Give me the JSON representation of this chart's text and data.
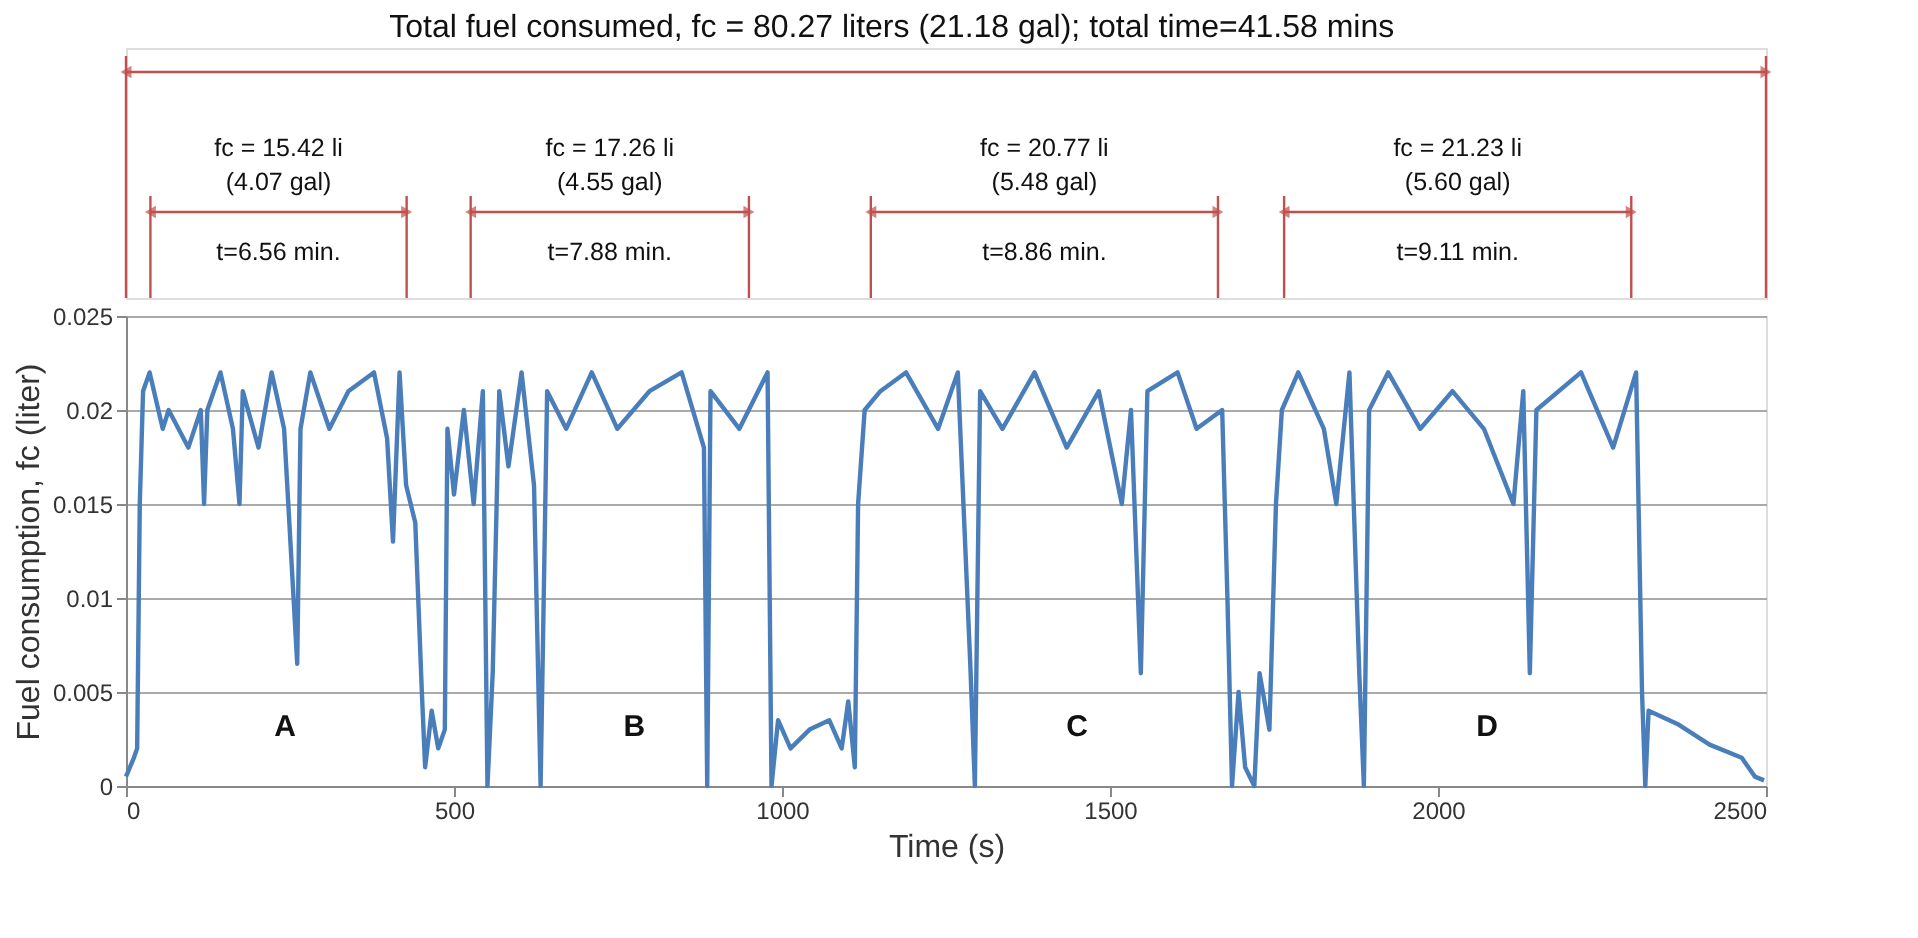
{
  "chart_data": {
    "type": "line",
    "title": "Total fuel consumed, fc = 80.27 liters (21.18 gal); total time=41.58 mins",
    "xlabel": "Time (s)",
    "ylabel": "Fuel consumption, fc  (liter)",
    "xlim": [
      0,
      2500
    ],
    "xticks": [
      0,
      500,
      1000,
      1500,
      2000,
      2500
    ],
    "ylim": [
      0,
      0.025
    ],
    "yticks": [
      0,
      0.005,
      0.01,
      0.015,
      0.02,
      0.025
    ],
    "grid": "y",
    "marker": "none",
    "line_style": "solid",
    "series": [
      {
        "color": "#4a7ebb",
        "x": [
          0,
          12,
          17,
          21,
          26,
          36,
          56,
          65,
          95,
          114,
          119,
          124,
          144,
          163,
          173,
          178,
          202,
          222,
          241,
          261,
          266,
          281,
          310,
          339,
          378,
          398,
          407,
          417,
          427,
          441,
          451,
          456,
          466,
          476,
          486,
          490,
          500,
          515,
          530,
          544,
          551,
          559,
          569,
          583,
          603,
          622,
          632,
          642,
          671,
          710,
          749,
          798,
          847,
          881,
          886,
          891,
          935,
          978,
          984,
          994,
          1013,
          1042,
          1072,
          1091,
          1101,
          1111,
          1116,
          1126,
          1150,
          1189,
          1238,
          1268,
          1287,
          1294,
          1302,
          1336,
          1385,
          1434,
          1483,
          1518,
          1532,
          1547,
          1557,
          1603,
          1632,
          1671,
          1679,
          1686,
          1696,
          1706,
          1720,
          1728,
          1743,
          1753,
          1762,
          1787,
          1826,
          1845,
          1865,
          1880,
          1887,
          1895,
          1924,
          1973,
          2022,
          2070,
          2115,
          2130,
          2140,
          2150,
          2218,
          2267,
          2302,
          2311,
          2316,
          2321,
          2365,
          2414,
          2463,
          2483,
          2497
        ],
        "values": [
          0.0005,
          0.0015,
          0.002,
          0.015,
          0.021,
          0.022,
          0.019,
          0.02,
          0.018,
          0.02,
          0.015,
          0.02,
          0.022,
          0.019,
          0.015,
          0.021,
          0.018,
          0.022,
          0.019,
          0.0065,
          0.019,
          0.022,
          0.019,
          0.021,
          0.022,
          0.0185,
          0.013,
          0.022,
          0.016,
          0.014,
          0.005,
          0.001,
          0.004,
          0.002,
          0.003,
          0.019,
          0.0155,
          0.02,
          0.015,
          0.021,
          0,
          0.006,
          0.021,
          0.017,
          0.022,
          0.016,
          0,
          0.021,
          0.019,
          0.022,
          0.019,
          0.021,
          0.022,
          0.018,
          0,
          0.021,
          0.019,
          0.022,
          0,
          0.0035,
          0.002,
          0.003,
          0.0035,
          0.002,
          0.0045,
          0.001,
          0.015,
          0.02,
          0.021,
          0.022,
          0.019,
          0.022,
          0.0065,
          0,
          0.021,
          0.019,
          0.022,
          0.018,
          0.021,
          0.015,
          0.02,
          0.006,
          0.021,
          0.022,
          0.019,
          0.02,
          0.01,
          0,
          0.005,
          0.001,
          0,
          0.006,
          0.003,
          0.015,
          0.02,
          0.022,
          0.019,
          0.015,
          0.022,
          0.006,
          0,
          0.02,
          0.022,
          0.019,
          0.021,
          0.019,
          0.015,
          0.021,
          0.006,
          0.02,
          0.022,
          0.018,
          0.022,
          0.005,
          0,
          0.004,
          0.0033,
          0.0022,
          0.0015,
          0.0005,
          0.0003
        ]
      }
    ],
    "annotations": [
      "fc = 15.42 li",
      "(4.07 gal)",
      "t=6.56 min.",
      "fc = 17.26 li",
      "(4.55 gal)",
      "t=7.88 min.",
      "fc = 20.77 li",
      "(5.48 gal)",
      "t=8.86 min.",
      "fc = 21.23 li",
      "(5.60 gal)",
      "t=9.11 min.",
      "A",
      "B",
      "C",
      "D"
    ]
  }
}
